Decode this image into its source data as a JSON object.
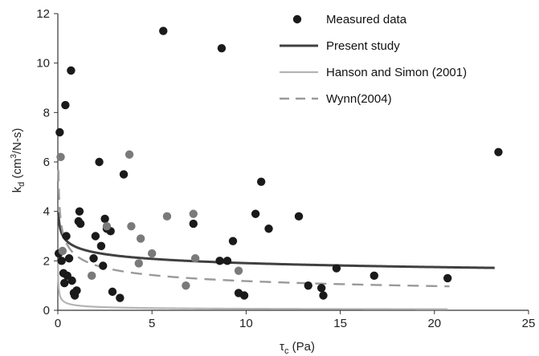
{
  "chart_data": {
    "type": "scatter",
    "title": "",
    "xlabel": "τc (Pa)",
    "ylabel": "kd (cm³/N-s)",
    "xlabel_parts": {
      "base": "τ",
      "sub": "c",
      "rest": " (Pa)"
    },
    "ylabel_parts": {
      "base": "k",
      "sub": "d",
      "mid": " (cm",
      "sup": "3",
      "rest": "/N-s)"
    },
    "xlim": [
      0,
      25
    ],
    "ylim": [
      0,
      12
    ],
    "x_ticks": [
      0,
      5,
      10,
      15,
      20,
      25
    ],
    "y_ticks": [
      0,
      2,
      4,
      6,
      8,
      10,
      12
    ],
    "grid": false,
    "legend_position": "top-right",
    "colors": {
      "measured": "#1a1a1a",
      "measured_gray": "#7a7a7a",
      "present": "#404040",
      "hanson": "#b4b4b4",
      "wynn": "#9a9a9a",
      "axis": "#333333"
    },
    "series": [
      {
        "name": "Measured data",
        "kind": "points",
        "points": [
          [
            0.05,
            2.3
          ],
          [
            0.1,
            7.2
          ],
          [
            0.2,
            2.0
          ],
          [
            0.3,
            1.5
          ],
          [
            0.35,
            1.1
          ],
          [
            0.4,
            8.3
          ],
          [
            0.45,
            3.0
          ],
          [
            0.5,
            1.4
          ],
          [
            0.6,
            2.1
          ],
          [
            0.7,
            9.7
          ],
          [
            0.75,
            1.2
          ],
          [
            0.85,
            0.7
          ],
          [
            0.9,
            0.6
          ],
          [
            1.0,
            0.8
          ],
          [
            1.1,
            3.6
          ],
          [
            1.15,
            4.0
          ],
          [
            1.2,
            3.5
          ],
          [
            1.9,
            2.1
          ],
          [
            2.0,
            3.0
          ],
          [
            2.2,
            6.0
          ],
          [
            2.3,
            2.6
          ],
          [
            2.4,
            1.8
          ],
          [
            2.5,
            3.7
          ],
          [
            2.6,
            3.3
          ],
          [
            2.8,
            3.2
          ],
          [
            2.9,
            0.75
          ],
          [
            3.3,
            0.5
          ],
          [
            3.5,
            5.5
          ],
          [
            5.6,
            11.3
          ],
          [
            7.2,
            3.5
          ],
          [
            8.6,
            2.0
          ],
          [
            8.7,
            10.6
          ],
          [
            9.0,
            2.0
          ],
          [
            9.3,
            2.8
          ],
          [
            9.6,
            0.7
          ],
          [
            9.9,
            0.6
          ],
          [
            10.5,
            3.9
          ],
          [
            10.8,
            5.2
          ],
          [
            11.2,
            3.3
          ],
          [
            12.8,
            3.8
          ],
          [
            13.3,
            1.0
          ],
          [
            14.0,
            0.9
          ],
          [
            14.1,
            0.6
          ],
          [
            14.8,
            1.7
          ],
          [
            16.8,
            1.4
          ],
          [
            20.7,
            1.3
          ],
          [
            23.4,
            6.4
          ]
        ]
      },
      {
        "name": "Measured data (gray)",
        "kind": "points",
        "legend": false,
        "points": [
          [
            0.15,
            6.2
          ],
          [
            0.25,
            2.4
          ],
          [
            1.8,
            1.4
          ],
          [
            2.6,
            3.4
          ],
          [
            3.8,
            6.3
          ],
          [
            3.9,
            3.4
          ],
          [
            4.3,
            1.9
          ],
          [
            4.4,
            2.9
          ],
          [
            5.0,
            2.3
          ],
          [
            5.8,
            3.8
          ],
          [
            6.8,
            1.0
          ],
          [
            7.2,
            3.9
          ],
          [
            7.3,
            2.1
          ],
          [
            9.6,
            1.6
          ]
        ]
      },
      {
        "name": "Present study",
        "kind": "line",
        "style": "solid",
        "formula": {
          "a": 2.55,
          "b": -0.126
        },
        "x_range": [
          0.03,
          23.2
        ]
      },
      {
        "name": "Hanson and Simon (2001)",
        "kind": "line",
        "style": "solid",
        "formula": {
          "a": 0.2,
          "b": -0.5
        },
        "x_range": [
          0.01,
          20.7
        ]
      },
      {
        "name": "Wynn(2004)",
        "kind": "line",
        "style": "dashed",
        "formula": {
          "a": 2.2,
          "b": -0.27
        },
        "x_range": [
          0.03,
          20.8
        ]
      }
    ]
  }
}
